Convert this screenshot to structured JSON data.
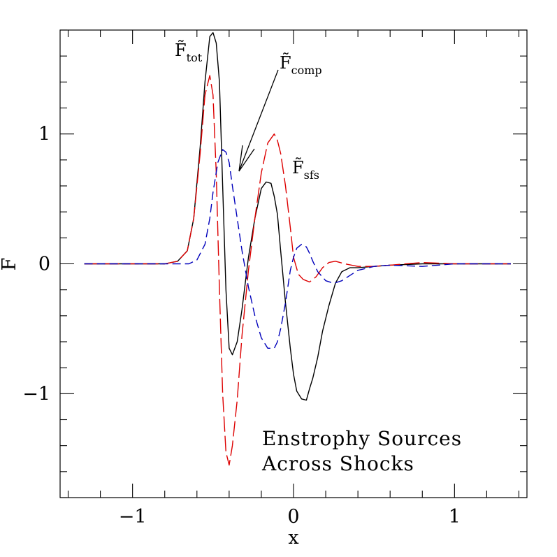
{
  "chart_data": {
    "type": "line",
    "xlabel": "x",
    "ylabel": "F̄",
    "xlim": [
      -1.45,
      1.45
    ],
    "ylim": [
      -1.8,
      1.8
    ],
    "x_ticks": [
      -1,
      0,
      1
    ],
    "x_tick_labels": [
      "−1",
      "0",
      "1"
    ],
    "y_ticks": [
      -1,
      0,
      1
    ],
    "y_tick_labels": [
      "−1",
      "0",
      "1"
    ],
    "grid": false,
    "annotation_lines": [
      "Enstrophy Sources",
      "Across Shocks"
    ],
    "series_labels": {
      "tot": {
        "main": "F̃",
        "sub": "tot"
      },
      "comp": {
        "main": "F̃",
        "sub": "comp"
      },
      "sfs": {
        "main": "F̃",
        "sub": "sfs"
      }
    },
    "series": [
      {
        "key": "tot",
        "color": "#000000",
        "dash": "solid",
        "x": [
          -1.3,
          -0.8,
          -0.72,
          -0.66,
          -0.62,
          -0.58,
          -0.55,
          -0.52,
          -0.5,
          -0.48,
          -0.46,
          -0.44,
          -0.42,
          -0.4,
          -0.38,
          -0.35,
          -0.32,
          -0.28,
          -0.24,
          -0.2,
          -0.17,
          -0.14,
          -0.12,
          -0.1,
          -0.08,
          -0.05,
          -0.02,
          0.0,
          0.02,
          0.05,
          0.08,
          0.1,
          0.12,
          0.15,
          0.18,
          0.22,
          0.26,
          0.3,
          0.35,
          0.4,
          0.5,
          0.6,
          0.8,
          1.0,
          1.2,
          1.35
        ],
        "y": [
          0,
          0,
          0.02,
          0.1,
          0.35,
          0.9,
          1.4,
          1.75,
          1.78,
          1.7,
          1.4,
          0.6,
          -0.2,
          -0.65,
          -0.7,
          -0.6,
          -0.35,
          0.05,
          0.35,
          0.58,
          0.63,
          0.62,
          0.52,
          0.38,
          0.1,
          -0.3,
          -0.65,
          -0.85,
          -0.98,
          -1.04,
          -1.05,
          -0.96,
          -0.88,
          -0.72,
          -0.52,
          -0.32,
          -0.15,
          -0.06,
          -0.03,
          -0.03,
          -0.02,
          -0.01,
          0.0,
          0.0,
          0.0,
          0.0
        ]
      },
      {
        "key": "comp",
        "color": "#dd0000",
        "dash": "long-dash",
        "x": [
          -1.3,
          -0.8,
          -0.72,
          -0.66,
          -0.62,
          -0.58,
          -0.55,
          -0.52,
          -0.5,
          -0.48,
          -0.46,
          -0.44,
          -0.42,
          -0.4,
          -0.38,
          -0.35,
          -0.32,
          -0.28,
          -0.24,
          -0.2,
          -0.16,
          -0.12,
          -0.1,
          -0.08,
          -0.05,
          -0.02,
          0.0,
          0.03,
          0.06,
          0.1,
          0.14,
          0.18,
          0.22,
          0.26,
          0.32,
          0.4,
          0.5,
          0.6,
          0.8,
          1.0,
          1.2,
          1.35
        ],
        "y": [
          0,
          0,
          0.02,
          0.1,
          0.35,
          0.85,
          1.3,
          1.45,
          1.3,
          0.7,
          -0.2,
          -1.0,
          -1.45,
          -1.55,
          -1.4,
          -1.05,
          -0.55,
          -0.05,
          0.35,
          0.7,
          0.93,
          1.0,
          0.95,
          0.85,
          0.6,
          0.28,
          0.05,
          -0.08,
          -0.12,
          -0.14,
          -0.1,
          -0.03,
          0.01,
          0.02,
          0.0,
          -0.02,
          -0.02,
          -0.01,
          0.01,
          0.0,
          0.0,
          0.0
        ]
      },
      {
        "key": "sfs",
        "color": "#0000bb",
        "dash": "dash",
        "x": [
          -1.3,
          -0.7,
          -0.65,
          -0.6,
          -0.55,
          -0.52,
          -0.5,
          -0.47,
          -0.44,
          -0.42,
          -0.4,
          -0.38,
          -0.35,
          -0.32,
          -0.28,
          -0.24,
          -0.2,
          -0.16,
          -0.12,
          -0.1,
          -0.08,
          -0.05,
          -0.02,
          0.0,
          0.02,
          0.05,
          0.08,
          0.1,
          0.12,
          0.15,
          0.2,
          0.25,
          0.3,
          0.35,
          0.4,
          0.5,
          0.6,
          0.8,
          1.0,
          1.2,
          1.35
        ],
        "y": [
          0,
          0,
          0.0,
          0.03,
          0.15,
          0.35,
          0.55,
          0.78,
          0.88,
          0.86,
          0.78,
          0.6,
          0.35,
          0.1,
          -0.18,
          -0.4,
          -0.57,
          -0.65,
          -0.65,
          -0.6,
          -0.5,
          -0.3,
          -0.05,
          0.05,
          0.12,
          0.15,
          0.13,
          0.08,
          0.02,
          -0.06,
          -0.13,
          -0.15,
          -0.13,
          -0.09,
          -0.05,
          -0.02,
          -0.01,
          -0.02,
          0.0,
          0.0,
          0.0
        ]
      }
    ]
  }
}
